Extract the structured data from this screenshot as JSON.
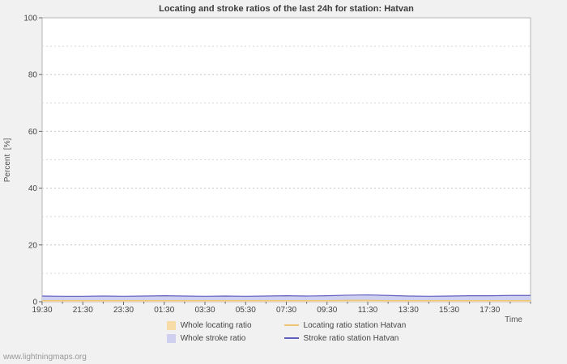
{
  "watermark": "www.lightningmaps.org",
  "chart_data": {
    "type": "area",
    "title": "Locating and stroke ratios of the last 24h for station: Hatvan",
    "ylabel": "Percent  [%]",
    "xlabel": "Time",
    "ylim": [
      0,
      100
    ],
    "y_major_ticks": [
      0,
      20,
      40,
      60,
      80,
      100
    ],
    "y_minor_step": 10,
    "grid": "dashed",
    "legend_position": "bottom",
    "x_hours_span": 24,
    "x": [
      0,
      1,
      2,
      3,
      4,
      5,
      6,
      7,
      8,
      9,
      10,
      11,
      12,
      13,
      14,
      15,
      16,
      17,
      18,
      19,
      20,
      21,
      22,
      23,
      24
    ],
    "x_tick_hours": [
      0,
      2,
      4,
      6,
      8,
      10,
      12,
      14,
      16,
      18,
      20,
      22
    ],
    "x_tick_labels": [
      "19:30",
      "21:30",
      "23:30",
      "01:30",
      "03:30",
      "05:30",
      "07:30",
      "09:30",
      "11:30",
      "13:30",
      "15:30",
      "17:30"
    ],
    "series": [
      {
        "name": "Whole locating ratio",
        "kind": "area",
        "color": "#f8dca8",
        "values": [
          0.3,
          0.3,
          0.3,
          0.3,
          0.3,
          0.3,
          0.3,
          0.3,
          0.3,
          0.3,
          0.3,
          0.3,
          0.3,
          0.3,
          0.3,
          0.3,
          0.3,
          0.3,
          0.3,
          0.3,
          0.3,
          0.3,
          0.3,
          0.3,
          0.3
        ]
      },
      {
        "name": "Whole stroke ratio",
        "kind": "area",
        "color": "#cfd0f0",
        "values": [
          1.9,
          1.8,
          1.8,
          1.9,
          1.8,
          1.9,
          2.0,
          1.9,
          1.8,
          1.9,
          1.8,
          1.9,
          2.0,
          1.9,
          2.0,
          2.2,
          2.3,
          2.1,
          1.9,
          1.8,
          1.9,
          2.0,
          2.0,
          2.1,
          2.1
        ]
      },
      {
        "name": "Locating ratio station Hatvan",
        "kind": "line",
        "color": "#eec670",
        "values": [
          0.4,
          0.4,
          0.4,
          0.4,
          0.4,
          0.4,
          0.4,
          0.4,
          0.4,
          0.4,
          0.4,
          0.4,
          0.4,
          0.4,
          0.4,
          0.5,
          0.5,
          0.4,
          0.4,
          0.4,
          0.4,
          0.4,
          0.4,
          0.4,
          0.4
        ]
      },
      {
        "name": "Stroke ratio station Hatvan",
        "kind": "line",
        "color": "#6060c0",
        "values": [
          2.0,
          1.9,
          1.9,
          2.0,
          1.9,
          2.0,
          2.1,
          2.0,
          1.9,
          2.0,
          1.9,
          2.0,
          2.1,
          2.0,
          2.1,
          2.3,
          2.4,
          2.2,
          2.0,
          1.9,
          2.0,
          2.1,
          2.1,
          2.2,
          2.2
        ]
      }
    ],
    "colors": {
      "plot_background": "#ffffff",
      "page_background": "#f1f1f1",
      "grid_major": "#c6c6c6",
      "grid_minor": "#d9d9d9",
      "plot_border": "#b5b5b5"
    }
  }
}
